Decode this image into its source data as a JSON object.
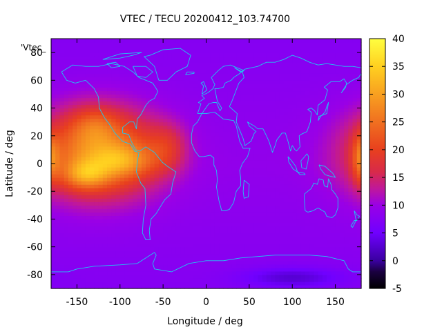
{
  "chart_data": {
    "type": "heatmap",
    "title": "VTEC / TECU 20200412_103.74700",
    "xlabel": "Longitude / deg",
    "ylabel": "Latitude / deg",
    "series_key": "'Vtec_",
    "xlim": [
      -180,
      180
    ],
    "ylim": [
      -90,
      90
    ],
    "x_ticks": [
      -150,
      -100,
      -50,
      0,
      50,
      100,
      150
    ],
    "y_ticks": [
      -80,
      -60,
      -40,
      -20,
      0,
      20,
      40,
      60,
      80
    ],
    "colorbar": {
      "ticks": [
        -5,
        0,
        5,
        10,
        15,
        20,
        25,
        30,
        35,
        40
      ],
      "range": [
        -5,
        40
      ],
      "stops": [
        [
          -5,
          "#000000"
        ],
        [
          -2,
          "#1a0040"
        ],
        [
          0,
          "#3a00a0"
        ],
        [
          5,
          "#7000ff"
        ],
        [
          10,
          "#9a00e6"
        ],
        [
          13,
          "#c0189a"
        ],
        [
          16,
          "#d82a4a"
        ],
        [
          20,
          "#e8401e"
        ],
        [
          25,
          "#f07020"
        ],
        [
          30,
          "#f8a020"
        ],
        [
          35,
          "#ffd020"
        ],
        [
          40,
          "#ffff40"
        ]
      ]
    },
    "background_level": 9,
    "features": [
      {
        "name": "pacific-american-enhancement",
        "lon": -125,
        "lat": 8,
        "sigma_lon": 48,
        "sigma_lat": 22,
        "peak": 20
      },
      {
        "name": "pacific-peak",
        "lon": -140,
        "lat": -8,
        "sigma_lon": 18,
        "sigma_lat": 7,
        "peak": 10
      },
      {
        "name": "central-america-peak",
        "lon": -95,
        "lat": 2,
        "sigma_lon": 25,
        "sigma_lat": 8,
        "peak": 8
      },
      {
        "name": "atlantic-lobe",
        "lon": -45,
        "lat": 12,
        "sigma_lon": 16,
        "sigma_lat": 12,
        "peak": 6
      },
      {
        "name": "north-pacific-lobe",
        "lon": -130,
        "lat": 28,
        "sigma_lon": 18,
        "sigma_lat": 9,
        "peak": 5
      },
      {
        "name": "eastern-edge-peak",
        "lon": 180,
        "lat": 4,
        "sigma_lon": 7,
        "sigma_lat": 12,
        "peak": 9
      },
      {
        "name": "antarctic-depletion",
        "lon": 100,
        "lat": -82,
        "sigma_lon": 40,
        "sigma_lat": 5,
        "peak": -5
      }
    ]
  }
}
